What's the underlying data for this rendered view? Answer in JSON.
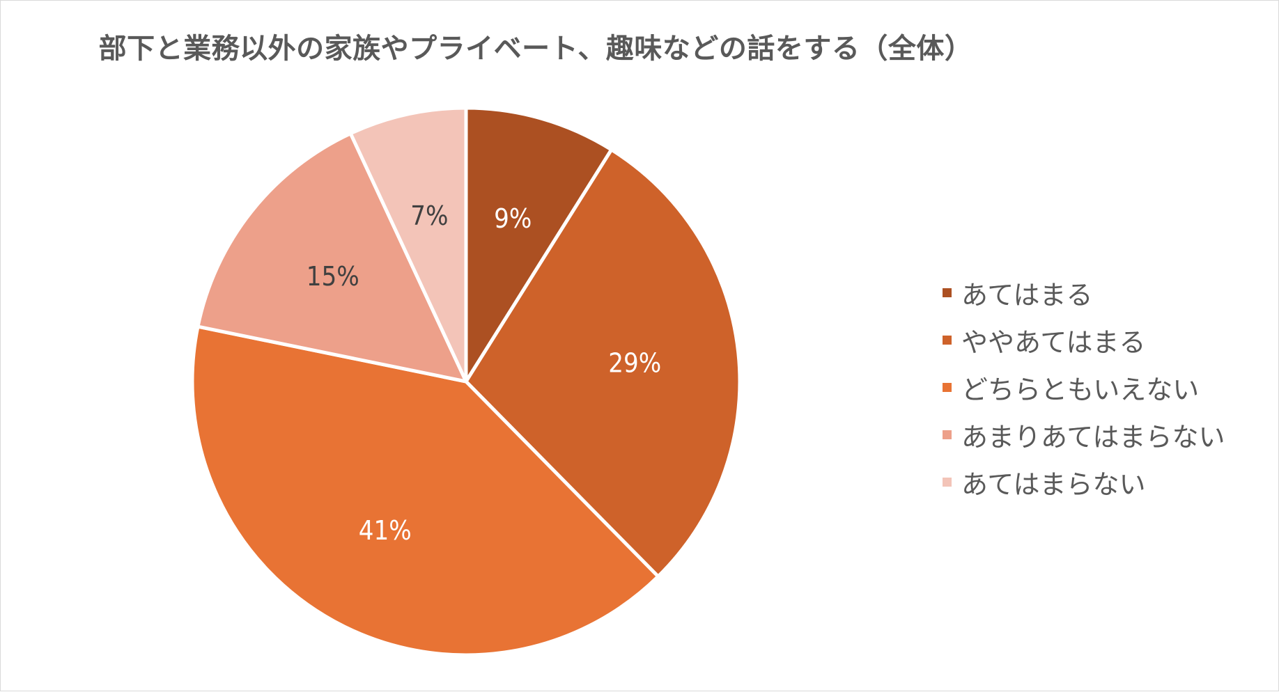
{
  "chart_data": {
    "type": "pie",
    "title": "部下と業務以外の家族やプライベート、趣味などの話をする（全体）",
    "categories": [
      "あてはまる",
      "ややあてはまる",
      "どちらともいえない",
      "あまりあてはまらない",
      "あてはまらない"
    ],
    "values": [
      9,
      29,
      41,
      15,
      7
    ],
    "value_labels": [
      "9%",
      "29%",
      "41%",
      "15%",
      "7%"
    ],
    "colors": [
      "#AC5022",
      "#CE622A",
      "#E87334",
      "#EDA08A",
      "#F3C4B8"
    ],
    "label_colors": [
      "#ffffff",
      "#ffffff",
      "#ffffff",
      "#404040",
      "#404040"
    ],
    "legend_position": "right"
  }
}
